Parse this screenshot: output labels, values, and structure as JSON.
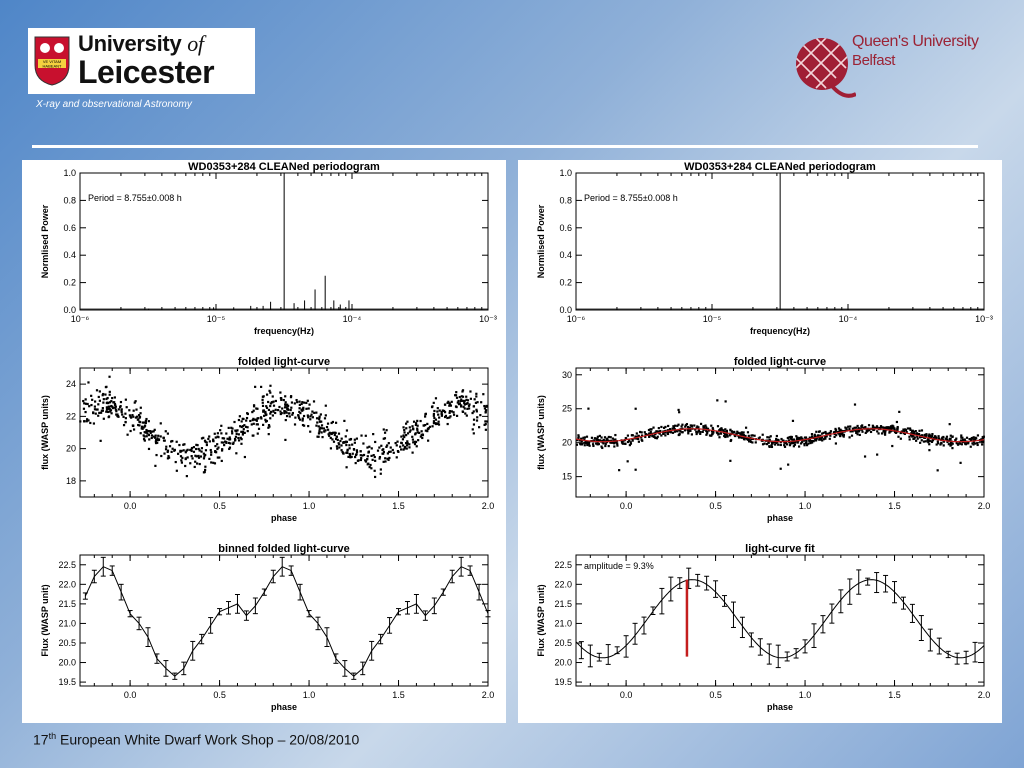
{
  "header": {
    "left_logo": {
      "line1": "University",
      "of": "of",
      "line2": "Leicester",
      "crest_text": [
        "VE VITAM",
        "HABEANT"
      ]
    },
    "subtitle": "X-ray and observational Astronomy",
    "right_logo": {
      "line1": "Queen's University",
      "line2": "Belfast"
    }
  },
  "footer": {
    "num": "17",
    "sup": "th",
    "text": " European White Dwarf Work Shop – 20/08/2010"
  },
  "colors": {
    "fit_line": "#c41e1e",
    "qub_red": "#9b2335"
  },
  "chart_data": [
    {
      "type": "line",
      "panel": "left",
      "title": "WD0353+284 CLEANed periodogram",
      "xlabel": "frequency(Hz)",
      "ylabel": "Normlised Power",
      "xscale": "log",
      "xlim": [
        1e-06,
        0.001
      ],
      "ylim": [
        0.0,
        1.0
      ],
      "xticks": [
        "10⁻⁶",
        "10⁻⁵",
        "10⁻⁴",
        "10⁻³"
      ],
      "yticks": [
        "0.0",
        "0.2",
        "0.4",
        "0.6",
        "0.8",
        "1.0"
      ],
      "annotation": "Period = 8.755±0.008 h",
      "peaks": [
        {
          "freq": 3.2e-06,
          "power": 0.01
        },
        {
          "freq": 9.6e-06,
          "power": 0.02
        },
        {
          "freq": 1.35e-05,
          "power": 0.02
        },
        {
          "freq": 1.8e-05,
          "power": 0.03
        },
        {
          "freq": 2.22e-05,
          "power": 0.03
        },
        {
          "freq": 2.52e-05,
          "power": 0.06
        },
        {
          "freq": 3.17e-05,
          "power": 1.0
        },
        {
          "freq": 3.75e-05,
          "power": 0.05
        },
        {
          "freq": 4.48e-05,
          "power": 0.07
        },
        {
          "freq": 5.35e-05,
          "power": 0.15
        },
        {
          "freq": 6.35e-05,
          "power": 0.25
        },
        {
          "freq": 7.35e-05,
          "power": 0.07
        },
        {
          "freq": 8.2e-05,
          "power": 0.04
        },
        {
          "freq": 9.5e-05,
          "power": 0.07
        }
      ]
    },
    {
      "type": "scatter",
      "panel": "left",
      "title": "folded light-curve",
      "xlabel": "phase",
      "ylabel": "flux (WASP units)",
      "xlim": [
        -0.28,
        2.0
      ],
      "ylim": [
        17,
        25
      ],
      "xticks": [
        "0.0",
        "0.5",
        "1.0",
        "1.5",
        "2.0"
      ],
      "yticks": [
        "18",
        "20",
        "22",
        "24"
      ],
      "model": {
        "mean": 21.1,
        "amp": 1.55,
        "phase_of_max": 0.85,
        "period": 1.0
      }
    },
    {
      "type": "line",
      "panel": "left",
      "title": "binned folded light-curve",
      "xlabel": "phase",
      "ylabel": "Flux (WASP unit)",
      "xlim": [
        -0.28,
        2.0
      ],
      "ylim": [
        19.4,
        22.75
      ],
      "xticks": [
        "0.0",
        "0.5",
        "1.0",
        "1.5",
        "2.0"
      ],
      "yticks": [
        "19.5",
        "20.0",
        "20.5",
        "21.0",
        "21.5",
        "22.0",
        "22.5"
      ],
      "phase": [
        0.0,
        0.05,
        0.1,
        0.15,
        0.2,
        0.25,
        0.3,
        0.35,
        0.4,
        0.45,
        0.5,
        0.55,
        0.6,
        0.65,
        0.7,
        0.75,
        0.8,
        0.85,
        0.9,
        0.95
      ],
      "flux": [
        21.25,
        21.0,
        20.65,
        20.1,
        19.85,
        19.65,
        19.85,
        20.3,
        20.6,
        20.95,
        21.3,
        21.4,
        21.5,
        21.2,
        21.45,
        21.8,
        22.2,
        22.45,
        22.35,
        21.8
      ]
    },
    {
      "type": "line",
      "panel": "right",
      "title": "WD0353+284 CLEANed periodogram",
      "xlabel": "frequency(Hz)",
      "ylabel": "Normlised Power",
      "xscale": "log",
      "xlim": [
        1e-06,
        0.001
      ],
      "ylim": [
        0.0,
        1.0
      ],
      "xticks": [
        "10⁻⁶",
        "10⁻⁵",
        "10⁻⁴",
        "10⁻³"
      ],
      "yticks": [
        "0.0",
        "0.2",
        "0.4",
        "0.6",
        "0.8",
        "1.0"
      ],
      "annotation": "Period = 8.755±0.008 h",
      "peaks": [
        {
          "freq": 3.17e-05,
          "power": 1.0
        }
      ]
    },
    {
      "type": "scatter",
      "panel": "right",
      "title": "folded light-curve",
      "xlabel": "phase",
      "ylabel": "flux (WASP units)",
      "xlim": [
        -0.28,
        2.0
      ],
      "ylim": [
        12,
        31
      ],
      "xticks": [
        "0.0",
        "0.5",
        "1.0",
        "1.5",
        "2.0"
      ],
      "yticks": [
        "15",
        "20",
        "25",
        "30"
      ],
      "model": {
        "mean": 21.1,
        "amp": 0.95,
        "phase_of_max": 0.37,
        "period": 1.0
      }
    },
    {
      "type": "line",
      "panel": "right",
      "title": "light-curve fit",
      "xlabel": "phase",
      "ylabel": "Flux (WASP unit)",
      "xlim": [
        -0.28,
        2.0
      ],
      "ylim": [
        19.4,
        22.75
      ],
      "xticks": [
        "0.0",
        "0.5",
        "1.0",
        "1.5",
        "2.0"
      ],
      "yticks": [
        "19.5",
        "20.0",
        "20.5",
        "21.0",
        "21.5",
        "22.0",
        "22.5"
      ],
      "annotation": "amplitude = 9.3%",
      "model": {
        "mean": 21.12,
        "amp": 1.0,
        "phase_of_max": 0.37,
        "period": 1.0
      },
      "amplitude_marker": {
        "phase": 0.34,
        "from": 20.15,
        "to": 22.12
      }
    }
  ]
}
